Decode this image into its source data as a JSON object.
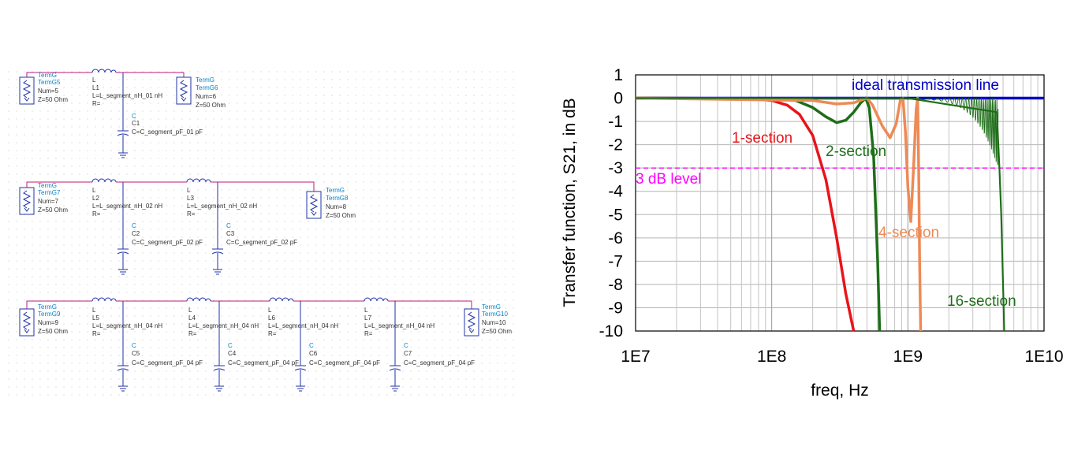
{
  "schematic": {
    "circuits": [
      {
        "terms": [
          {
            "type": "TermG",
            "name": "TermG5",
            "num": "Num=5",
            "z": "Z=50 Ohm"
          },
          {
            "type": "TermG",
            "name": "TermG6",
            "num": "Num=6",
            "z": "Z=50 Ohm"
          }
        ],
        "inductors": [
          {
            "type": "L",
            "name": "L1",
            "value": "L=L_segment_nH_01 nH",
            "r": "R="
          }
        ],
        "capacitors": [
          {
            "type": "C",
            "name": "C1",
            "value": "C=C_segment_pF_01 pF"
          }
        ]
      },
      {
        "terms": [
          {
            "type": "TermG",
            "name": "TermG7",
            "num": "Num=7",
            "z": "Z=50 Ohm"
          },
          {
            "type": "TermG",
            "name": "TermG8",
            "num": "Num=8",
            "z": "Z=50 Ohm"
          }
        ],
        "inductors": [
          {
            "type": "L",
            "name": "L2",
            "value": "L=L_segment_nH_02 nH",
            "r": "R="
          },
          {
            "type": "L",
            "name": "L3",
            "value": "L=L_segment_nH_02 nH",
            "r": "R="
          }
        ],
        "capacitors": [
          {
            "type": "C",
            "name": "C2",
            "value": "C=C_segment_pF_02 pF"
          },
          {
            "type": "C",
            "name": "C3",
            "value": "C=C_segment_pF_02 pF"
          }
        ]
      },
      {
        "terms": [
          {
            "type": "TermG",
            "name": "TermG9",
            "num": "Num=9",
            "z": "Z=50 Ohm"
          },
          {
            "type": "TermG",
            "name": "TermG10",
            "num": "Num=10",
            "z": "Z=50 Ohm"
          }
        ],
        "inductors": [
          {
            "type": "L",
            "name": "L5",
            "value": "L=L_segment_nH_04 nH",
            "r": "R="
          },
          {
            "type": "L",
            "name": "L4",
            "value": "L=L_segment_nH_04 nH",
            "r": "R="
          },
          {
            "type": "L",
            "name": "L6",
            "value": "L=L_segment_nH_04 nH",
            "r": "R="
          },
          {
            "type": "L",
            "name": "L7",
            "value": "L=L_segment_nH_04 nH",
            "r": "R="
          }
        ],
        "capacitors": [
          {
            "type": "C",
            "name": "C5",
            "value": "C=C_segment_pF_04 pF"
          },
          {
            "type": "C",
            "name": "C4",
            "value": "C=C_segment_pF_04 pF"
          },
          {
            "type": "C",
            "name": "C6",
            "value": "C=C_segment_pF_04 pF"
          },
          {
            "type": "C",
            "name": "C7",
            "value": "C=C_segment_pF_04 pF"
          }
        ]
      }
    ]
  },
  "chart_data": {
    "type": "line",
    "xlabel": "freq, Hz",
    "ylabel": "Transfer function,  S21, in dB",
    "x_scale": "log",
    "xlim": [
      10000000,
      10000000000
    ],
    "ylim": [
      -10,
      1
    ],
    "xticks": [
      "1E7",
      "1E8",
      "1E9",
      "1E10"
    ],
    "yticks": [
      "1",
      "0",
      "-1",
      "-2",
      "-3",
      "-4",
      "-5",
      "-6",
      "-7",
      "-8",
      "-9",
      "-10"
    ],
    "grid": true,
    "series": [
      {
        "name": "ideal transmission line",
        "color": "#0000c8",
        "x": [
          10000000,
          10000000000
        ],
        "y": [
          0,
          0
        ]
      },
      {
        "name": "1-section",
        "color": "#e8141a",
        "x": [
          10000000,
          50000000,
          80000000,
          100000000,
          130000000,
          160000000,
          200000000,
          250000000,
          300000000,
          350000000,
          400000000
        ],
        "y": [
          0,
          -0.01,
          -0.05,
          -0.1,
          -0.3,
          -0.7,
          -1.6,
          -3.5,
          -6.0,
          -8.4,
          -10
        ]
      },
      {
        "name": "2-section",
        "color": "#1e6e19",
        "x": [
          10000000,
          100000000,
          150000000,
          200000000,
          250000000,
          300000000,
          350000000,
          400000000,
          450000000,
          490000000,
          520000000,
          560000000,
          600000000,
          620000000
        ],
        "y": [
          0,
          -0.02,
          -0.1,
          -0.4,
          -0.8,
          -1.05,
          -0.95,
          -0.6,
          -0.2,
          0,
          -0.4,
          -2.5,
          -7.0,
          -10
        ]
      },
      {
        "name": "4-section",
        "color": "#ee8a55",
        "x": [
          10000000,
          200000000,
          300000000,
          400000000,
          470000000,
          500000000,
          550000000,
          650000000,
          740000000,
          820000000,
          880000000,
          920000000,
          960000000,
          1000000000,
          1050000000,
          1100000000,
          1150000000,
          1180000000,
          1200000000,
          1220000000,
          1240000000
        ],
        "y": [
          0,
          -0.1,
          -0.25,
          -0.2,
          -0.05,
          0,
          -0.3,
          -1.2,
          -1.7,
          -1.1,
          -0.1,
          0,
          -1.5,
          -3.8,
          -5.3,
          -3.0,
          -0.5,
          0,
          -3.0,
          -7.0,
          -10
        ]
      },
      {
        "name": "16-section",
        "color": "#1e6e19",
        "x": [
          10000000,
          1000000000,
          4500000000,
          4700000000,
          4850000000,
          5000000000,
          5100000000
        ],
        "y": [
          0,
          0,
          -0.6,
          -3.0,
          -5.0,
          -8.0,
          -10
        ]
      }
    ],
    "reference_lines": [
      {
        "name": "3 dB level",
        "y": -3,
        "color": "#ff00ff",
        "style": "dashed"
      }
    ],
    "annotations": [
      {
        "text": "ideal transmission line",
        "color": "#0000c8"
      },
      {
        "text": "1-section",
        "color": "#e8141a"
      },
      {
        "text": "2-section",
        "color": "#1e6e19"
      },
      {
        "text": "4-section",
        "color": "#ee8a55"
      },
      {
        "text": "16-section",
        "color": "#1e6e19"
      },
      {
        "text": "3 dB level",
        "color": "#ff00ff"
      }
    ]
  }
}
